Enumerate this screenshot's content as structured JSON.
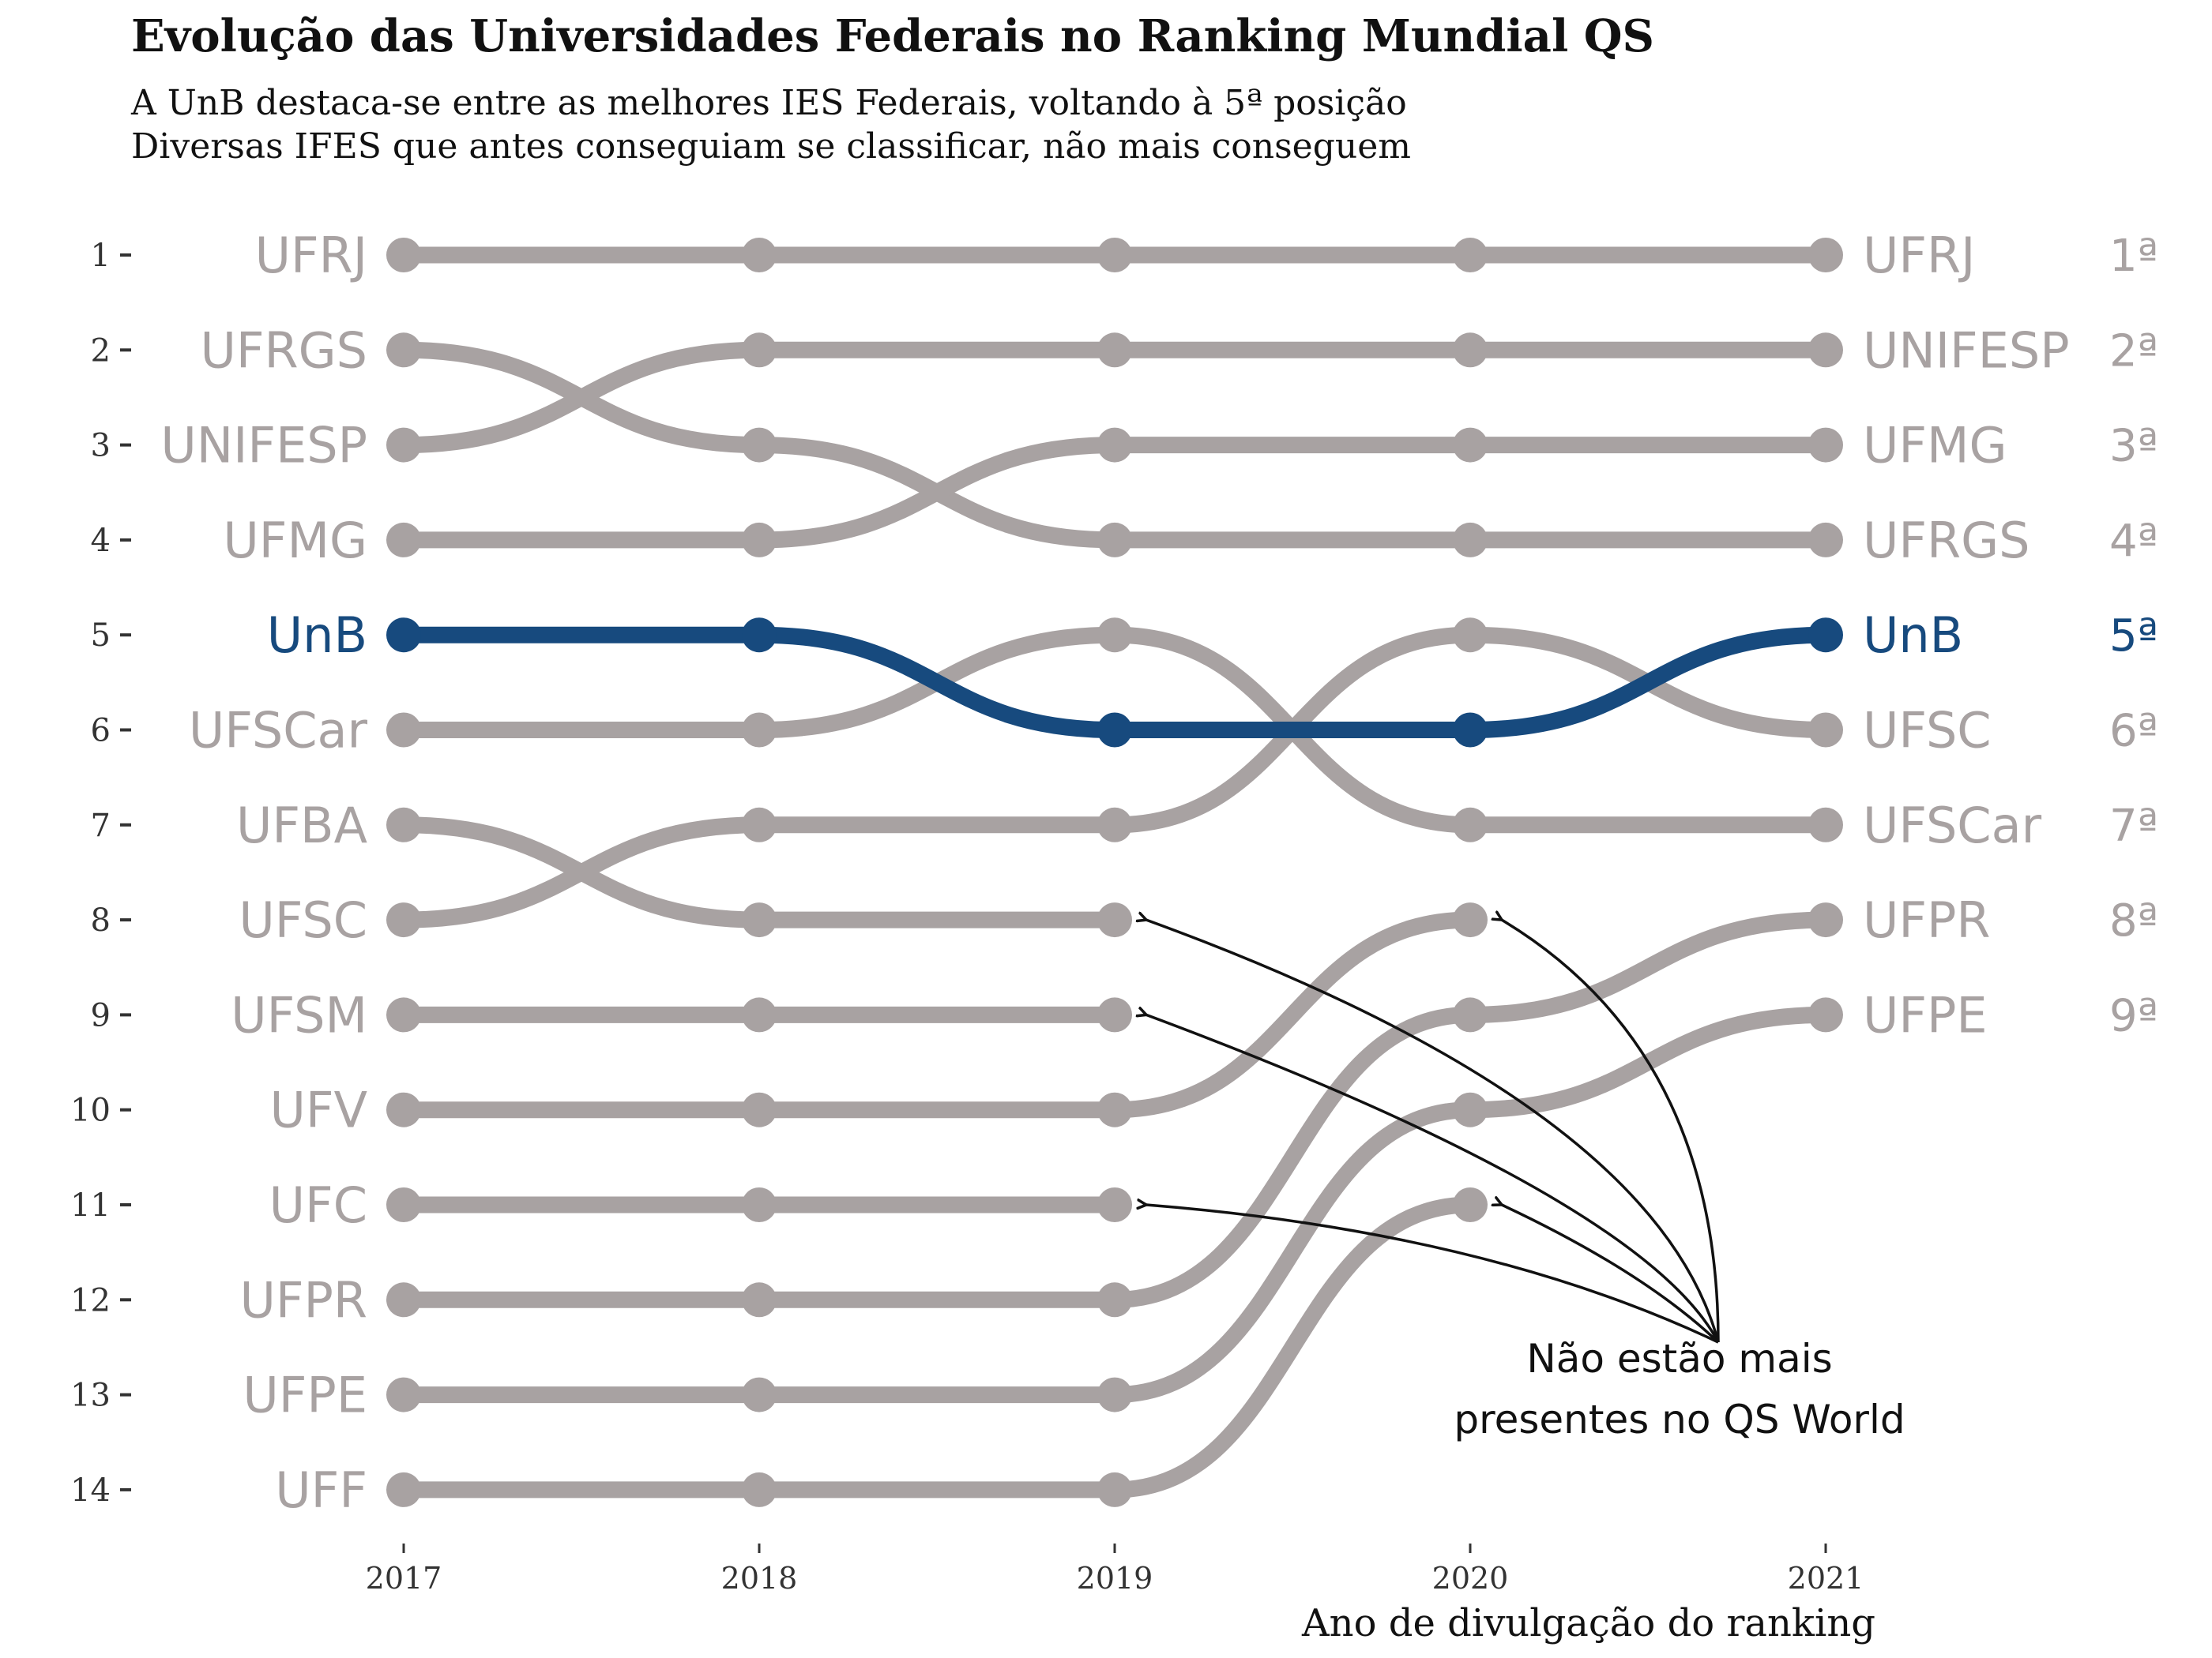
{
  "chart_data": {
    "type": "line",
    "title": "Evolução das Universidades Federais no Ranking Mundial QS",
    "subtitle": [
      "A UnB destaca-se entre as melhores IES Federais, voltando à 5ª posição",
      "Diversas IFES que antes conseguiam se classificar, não mais conseguem"
    ],
    "xlabel": "Ano de divulgação do ranking",
    "x": [
      2017,
      2018,
      2019,
      2020,
      2021
    ],
    "y_ticks": [
      "1",
      "2",
      "3",
      "4",
      "5",
      "6",
      "7",
      "8",
      "9",
      "10",
      "11",
      "12",
      "13",
      "14"
    ],
    "ylim": [
      1,
      14
    ],
    "y_reversed": true,
    "grid": false,
    "highlight_color": "#174a7e",
    "base_color": "#a8a2a2",
    "highlight": "UnB",
    "series": [
      {
        "name": "UFRJ",
        "values": [
          1,
          1,
          1,
          1,
          1
        ]
      },
      {
        "name": "UFRGS",
        "values": [
          2,
          3,
          4,
          4,
          4
        ]
      },
      {
        "name": "UNIFESP",
        "values": [
          3,
          2,
          2,
          2,
          2
        ]
      },
      {
        "name": "UFMG",
        "values": [
          4,
          4,
          3,
          3,
          3
        ]
      },
      {
        "name": "UnB",
        "values": [
          5,
          5,
          6,
          6,
          5
        ]
      },
      {
        "name": "UFSCar",
        "values": [
          6,
          6,
          5,
          7,
          7
        ]
      },
      {
        "name": "UFBA",
        "values": [
          7,
          8,
          8,
          null,
          null
        ]
      },
      {
        "name": "UFSC",
        "values": [
          8,
          7,
          7,
          5,
          6
        ]
      },
      {
        "name": "UFSM",
        "values": [
          9,
          9,
          9,
          null,
          null
        ]
      },
      {
        "name": "UFV",
        "values": [
          10,
          10,
          10,
          8,
          null
        ]
      },
      {
        "name": "UFC",
        "values": [
          11,
          11,
          11,
          null,
          null
        ]
      },
      {
        "name": "UFPR",
        "values": [
          12,
          12,
          12,
          9,
          8
        ]
      },
      {
        "name": "UFPE",
        "values": [
          13,
          13,
          13,
          10,
          9
        ]
      },
      {
        "name": "UFF",
        "values": [
          14,
          14,
          14,
          11,
          null
        ]
      }
    ],
    "left_labels": [
      "UFRJ",
      "UFRGS",
      "UNIFESP",
      "UFMG",
      "UnB",
      "UFSCar",
      "UFBA",
      "UFSC",
      "UFSM",
      "UFV",
      "UFC",
      "UFPR",
      "UFPE",
      "UFF"
    ],
    "right_labels": [
      "UFRJ",
      "UNIFESP",
      "UFMG",
      "UFRGS",
      "UnB",
      "UFSC",
      "UFSCar",
      "UFPR",
      "UFPE"
    ],
    "right_ranks": [
      "1ª",
      "2ª",
      "3ª",
      "4ª",
      "5ª",
      "6ª",
      "7ª",
      "8ª",
      "9ª"
    ],
    "annotation": {
      "lines": [
        "Não estão mais",
        "presentes no QS World"
      ],
      "targets": [
        {
          "x": 2019,
          "rank": 8
        },
        {
          "x": 2019,
          "rank": 9
        },
        {
          "x": 2019,
          "rank": 11
        },
        {
          "x": 2020,
          "rank": 8
        },
        {
          "x": 2020,
          "rank": 11
        }
      ]
    }
  }
}
